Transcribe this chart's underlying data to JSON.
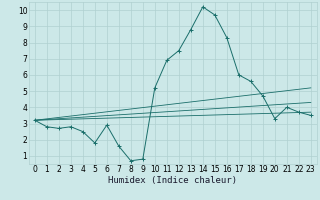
{
  "title": "",
  "xlabel": "Humidex (Indice chaleur)",
  "x_values": [
    0,
    1,
    2,
    3,
    4,
    5,
    6,
    7,
    8,
    9,
    10,
    11,
    12,
    13,
    14,
    15,
    16,
    17,
    18,
    19,
    20,
    21,
    22,
    23
  ],
  "main_y": [
    3.2,
    2.8,
    2.7,
    2.8,
    2.5,
    1.8,
    2.9,
    1.6,
    0.7,
    0.8,
    5.2,
    6.9,
    7.5,
    8.8,
    10.2,
    9.7,
    8.3,
    6.0,
    5.6,
    4.7,
    3.3,
    4.0,
    3.7,
    3.5
  ],
  "trend1_x": [
    0,
    23
  ],
  "trend1_y": [
    3.2,
    3.7
  ],
  "trend2_x": [
    0,
    23
  ],
  "trend2_y": [
    3.2,
    4.3
  ],
  "trend3_x": [
    0,
    23
  ],
  "trend3_y": [
    3.2,
    5.2
  ],
  "line_color": "#1a6e6a",
  "bg_color": "#cce8e8",
  "grid_major_color": "#b0d0d0",
  "grid_minor_color": "#c4e0e0",
  "xlim": [
    -0.5,
    23.5
  ],
  "ylim": [
    0.5,
    10.5
  ],
  "xticks": [
    0,
    1,
    2,
    3,
    4,
    5,
    6,
    7,
    8,
    9,
    10,
    11,
    12,
    13,
    14,
    15,
    16,
    17,
    18,
    19,
    20,
    21,
    22,
    23
  ],
  "yticks": [
    1,
    2,
    3,
    4,
    5,
    6,
    7,
    8,
    9,
    10
  ],
  "tick_fontsize": 5.5,
  "xlabel_fontsize": 6.5
}
